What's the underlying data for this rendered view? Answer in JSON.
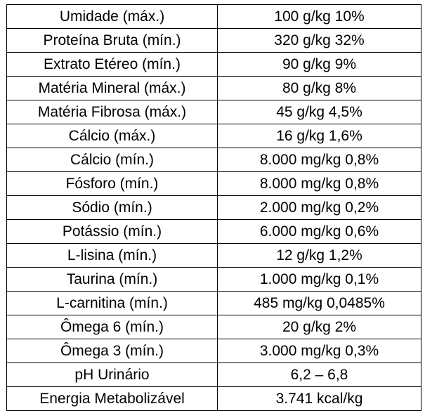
{
  "table": {
    "rows": [
      {
        "name": "Umidade (máx.)",
        "value": "100 g/kg 10%"
      },
      {
        "name": "Proteína Bruta (mín.)",
        "value": "320 g/kg 32%"
      },
      {
        "name": "Extrato Etéreo (mín.)",
        "value": "90 g/kg 9%"
      },
      {
        "name": "Matéria Mineral (máx.)",
        "value": "80 g/kg 8%"
      },
      {
        "name": "Matéria Fibrosa (máx.)",
        "value": "45 g/kg 4,5%"
      },
      {
        "name": "Cálcio (máx.)",
        "value": "16 g/kg 1,6%"
      },
      {
        "name": "Cálcio (mín.)",
        "value": "8.000 mg/kg 0,8%"
      },
      {
        "name": "Fósforo (mín.)",
        "value": "8.000 mg/kg 0,8%"
      },
      {
        "name": "Sódio (mín.)",
        "value": "2.000 mg/kg 0,2%"
      },
      {
        "name": "Potássio (mín.)",
        "value": "6.000 mg/kg 0,6%"
      },
      {
        "name": "L-lisina (mín.)",
        "value": "12 g/kg 1,2%"
      },
      {
        "name": "Taurina (mín.)",
        "value": "1.000 mg/kg 0,1%"
      },
      {
        "name": "L-carnitina (mín.)",
        "value": "485 mg/kg 0,0485%"
      },
      {
        "name": "Ômega 6 (mín.)",
        "value": "20 g/kg 2%"
      },
      {
        "name": "Ômega 3 (mín.)",
        "value": "3.000 mg/kg 0,3%"
      },
      {
        "name": "pH Urinário",
        "value": "6,2 – 6,8"
      },
      {
        "name": "Energia Metabolizável",
        "value": "3.741 kcal/kg"
      }
    ]
  }
}
